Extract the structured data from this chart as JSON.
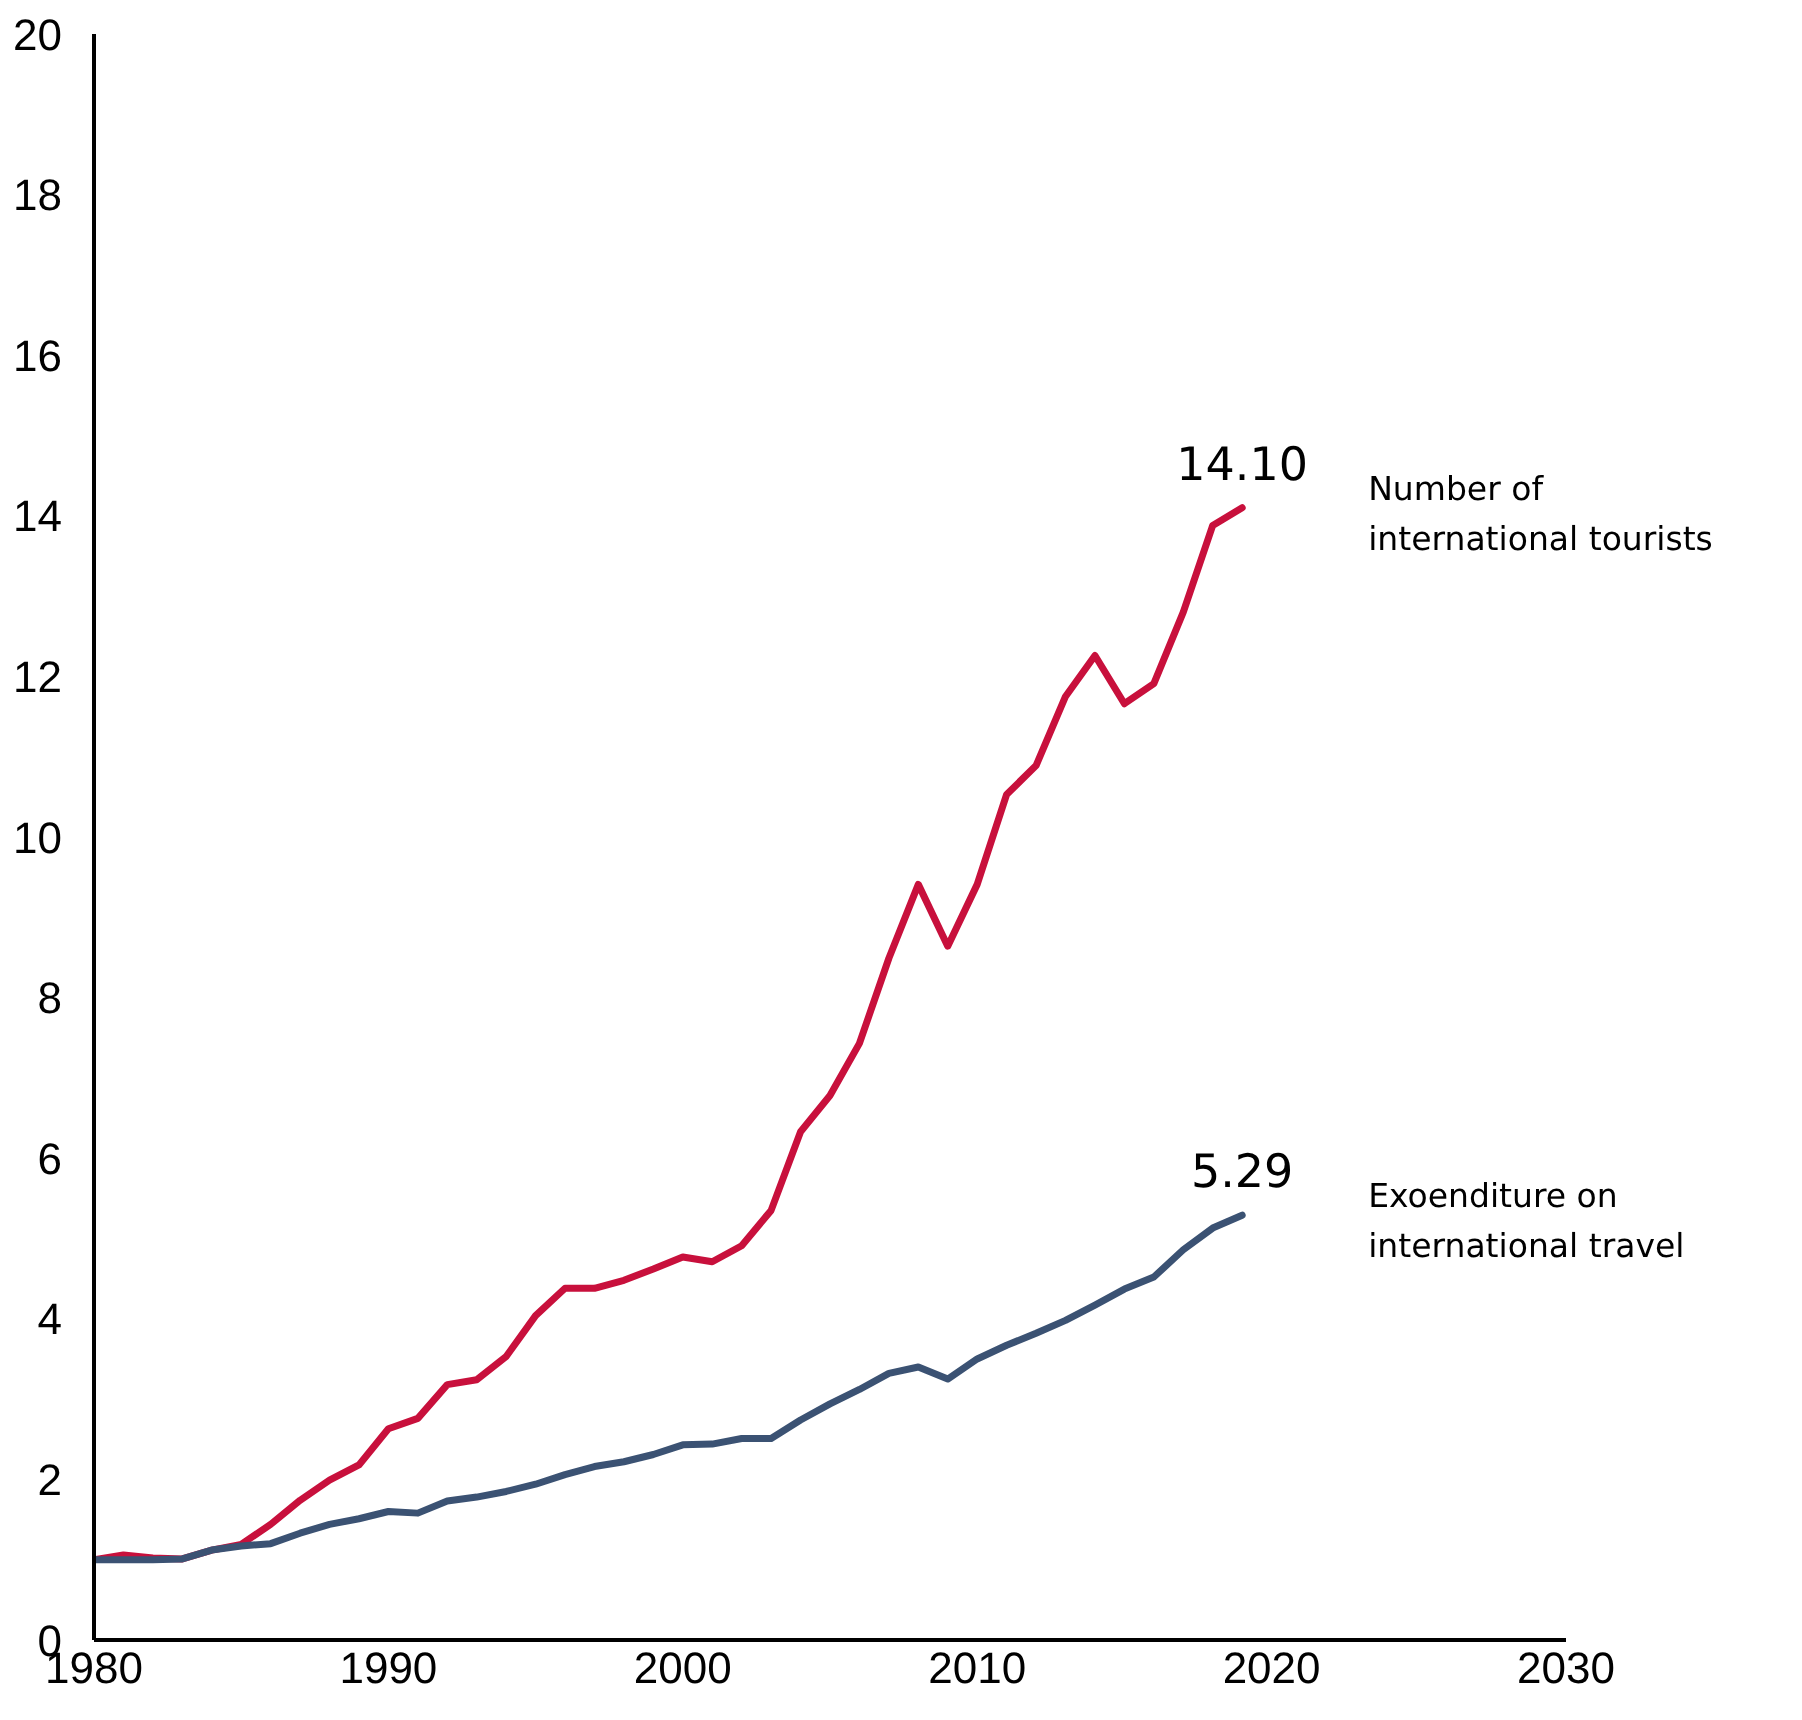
{
  "chart_data": {
    "type": "line",
    "x": [
      1980,
      1981,
      1982,
      1983,
      1984,
      1985,
      1986,
      1987,
      1988,
      1989,
      1990,
      1991,
      1992,
      1993,
      1994,
      1995,
      1996,
      1997,
      1998,
      1999,
      2000,
      2001,
      2002,
      2003,
      2004,
      2005,
      2006,
      2007,
      2008,
      2009,
      2010,
      2011,
      2012,
      2013,
      2014,
      2015,
      2016,
      2017,
      2018,
      2019
    ],
    "xlim": [
      1980,
      2030
    ],
    "xticks": [
      1980,
      1990,
      2000,
      2010,
      2020,
      2030
    ],
    "ylim": [
      0,
      20
    ],
    "yticks": [
      0,
      2,
      4,
      6,
      8,
      10,
      12,
      14,
      16,
      18,
      20
    ],
    "series": [
      {
        "name": "Number of international tourists",
        "color": "#c8103c",
        "values": [
          1.0,
          1.06,
          1.02,
          1.01,
          1.12,
          1.19,
          1.44,
          1.74,
          1.99,
          2.18,
          2.63,
          2.76,
          3.18,
          3.24,
          3.53,
          4.04,
          4.38,
          4.38,
          4.48,
          4.62,
          4.77,
          4.71,
          4.91,
          5.35,
          6.33,
          6.78,
          7.43,
          8.49,
          9.41,
          8.64,
          9.41,
          10.53,
          10.89,
          11.75,
          12.26,
          11.66,
          11.91,
          12.8,
          13.88,
          14.1
        ],
        "value_labels": [
          null,
          null,
          null,
          null,
          null,
          null,
          null,
          null,
          null,
          null,
          null,
          null,
          null,
          null,
          null,
          null,
          null,
          null,
          null,
          null,
          null,
          null,
          null,
          null,
          null,
          null,
          null,
          null,
          null,
          null,
          null,
          null,
          null,
          null,
          null,
          null,
          null,
          null,
          null,
          "14.10"
        ]
      },
      {
        "name": "Exoenditure on international travel",
        "color": "#3b5273",
        "values": [
          1.0,
          1.0,
          1.0,
          1.01,
          1.12,
          1.17,
          1.2,
          1.33,
          1.44,
          1.51,
          1.6,
          1.58,
          1.73,
          1.78,
          1.85,
          1.94,
          2.06,
          2.16,
          2.22,
          2.31,
          2.43,
          2.44,
          2.51,
          2.51,
          2.74,
          2.94,
          3.12,
          3.32,
          3.4,
          3.25,
          3.5,
          3.67,
          3.82,
          3.98,
          4.17,
          4.37,
          4.52,
          4.86,
          5.13,
          5.29
        ],
        "value_labels": [
          null,
          null,
          null,
          null,
          null,
          null,
          null,
          null,
          null,
          null,
          null,
          null,
          null,
          null,
          null,
          null,
          null,
          null,
          null,
          null,
          null,
          null,
          null,
          null,
          null,
          null,
          null,
          null,
          null,
          null,
          null,
          null,
          null,
          null,
          null,
          null,
          null,
          null,
          null,
          "5.29"
        ]
      }
    ]
  }
}
